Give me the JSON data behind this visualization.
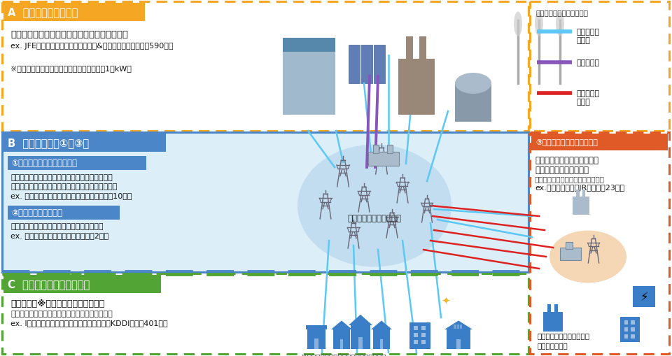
{
  "bg": "#ffffff",
  "A_title": "A  発電事業【届出制】",
  "A_title_bg": "#f5a623",
  "A_t1": "発電した電気を小売電気事業者等に供給する者",
  "A_t2": "ex. JFEスチール、東京電力フュエル&パワー、自治体　等（590者）",
  "A_t3": "※小売電気事業等の用に供する電力の合計が1万kW超",
  "B_title": "B  送配電事業（①〜③）",
  "B_title_bg": "#4a86c8",
  "B_fill": "#dceef8",
  "B_s1_title": "①一般送配電事業【許可制】",
  "B_s1_t1": "発電事業者から受けた電気を小売電気事業者等に",
  "B_s1_t2": "供給する者（離島供給や最終保障供給義務を負う）",
  "B_s1_t3": "ex. 東京電力パワーグリッド、関西電力　等（10者）",
  "B_s2_title": "②送電事業【許可制】",
  "B_s2_t1": "一般送配電事業者に電気の振替供給を行う者",
  "B_s2_t2": "ex. 電源開発、北海道北部送電　　（2者）",
  "B_clabel": "一般送配電事業者の系統",
  "B_circle": "#c0dcf0",
  "C_title": "C  小売電気事業【登録制】",
  "C_title_bg": "#52a535",
  "C_t1": "一般の需要※に応じ電気を小売する者",
  "C_t2": "（需要家への説明義務や供給力確保義務を負う）",
  "C_t3": "ex. Iネット、東京電力エナジーパートナー、KDDI　等（401者）",
  "C_footnote": "※一般の需要（一般家庭、企業、商店等）",
  "S3_title": "③特定送配電事業【届出制】",
  "S3_title_bg": "#e05a28",
  "S3_t1": "特定の供給地点における需要",
  "S3_t2": "に応じ電気を供給する者",
  "S3_t3": "（小売供給のためには登録が必要）",
  "S3_t4": "ex.住友共同電力、JR東　等（23者）",
  "S3_bl1": "一般の需要とは区別された",
  "S3_bl2": "特定の供給地点",
  "S3_circle": "#f5d0a8",
  "LEG_title": "送配電設備の維持・運用者",
  "LEG_l1": "一般送配電\n事業者",
  "LEG_l2": "送電事業者",
  "LEG_l3": "特定送配電\n事業者",
  "col_blue": "#5bc8f5",
  "col_purple": "#8855bb",
  "col_red": "#dd2222",
  "col_orange": "#f5a623",
  "col_green": "#52a535",
  "icon_blue": "#3a7ec8"
}
